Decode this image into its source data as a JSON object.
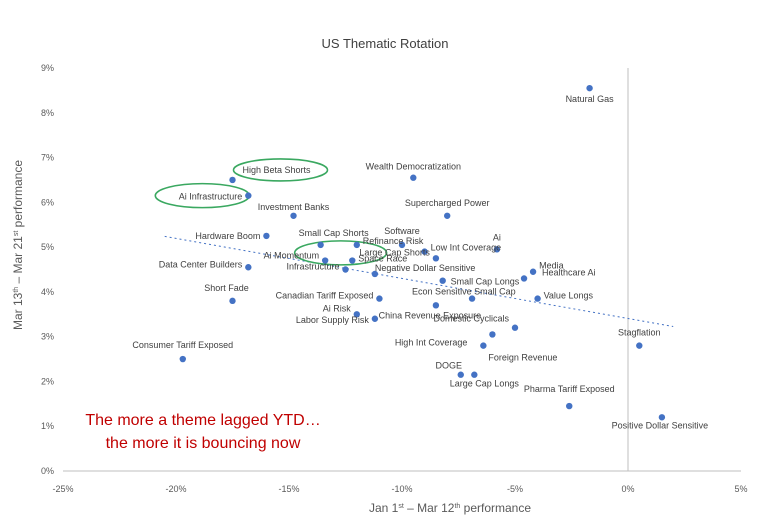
{
  "chart_data": {
    "type": "scatter",
    "title": "US Thematic Rotation",
    "xlabel": "Jan 1st – Mar 12th performance",
    "ylabel": "Mar 13th – Mar 21st performance",
    "x_unit": "%",
    "y_unit": "%",
    "xlim": [
      -25,
      5
    ],
    "ylim": [
      0,
      9
    ],
    "x_ticks": [
      "-25%",
      "-20%",
      "-15%",
      "-10%",
      "-5%",
      "0%",
      "5%"
    ],
    "y_ticks": [
      "0%",
      "1%",
      "2%",
      "3%",
      "4%",
      "5%",
      "6%",
      "7%",
      "8%",
      "9%"
    ],
    "grid": false,
    "trendline": "dotted linear trend, downward sloping",
    "annotation_lines": [
      "The more a theme lagged YTD…",
      "the more it is bouncing now"
    ],
    "annotation_color": "#c00000",
    "point_color": "#4472c4",
    "highlight_color": "#3aa860",
    "highlighted_points": [
      "High Beta Shorts",
      "Ai Infrastructure",
      "Small Cap Shorts"
    ],
    "points": [
      {
        "label": "Natural Gas",
        "x": -1.7,
        "y": 8.55
      },
      {
        "label": "High Beta Shorts",
        "x": -17.5,
        "y": 6.5
      },
      {
        "label": "Ai Infrastructure",
        "x": -16.8,
        "y": 6.15
      },
      {
        "label": "Wealth Democratization",
        "x": -9.5,
        "y": 6.55
      },
      {
        "label": "Supercharged Power",
        "x": -8.0,
        "y": 5.7
      },
      {
        "label": "Investment Banks",
        "x": -14.8,
        "y": 5.7
      },
      {
        "label": "Hardware Boom",
        "x": -16.0,
        "y": 5.25
      },
      {
        "label": "Small Cap Shorts",
        "x": -13.6,
        "y": 5.05
      },
      {
        "label": "Software",
        "x": -10.0,
        "y": 5.05
      },
      {
        "label": "Ai",
        "x": -5.8,
        "y": 4.95
      },
      {
        "label": "Refinance Risk",
        "x": -12.0,
        "y": 5.05
      },
      {
        "label": "Low Int Coverage",
        "x": -9.0,
        "y": 4.9
      },
      {
        "label": "Large Cap Shorts",
        "x": -8.5,
        "y": 4.75
      },
      {
        "label": "Ai Momentum",
        "x": -13.4,
        "y": 4.7
      },
      {
        "label": "Space Race",
        "x": -12.2,
        "y": 4.7
      },
      {
        "label": "Data Center Builders",
        "x": -16.8,
        "y": 4.55
      },
      {
        "label": "Infrastructure",
        "x": -12.5,
        "y": 4.5
      },
      {
        "label": "Negative Dollar Sensitive",
        "x": -11.2,
        "y": 4.4
      },
      {
        "label": "Media",
        "x": -4.2,
        "y": 4.45
      },
      {
        "label": "Healthcare Ai",
        "x": -4.6,
        "y": 4.3
      },
      {
        "label": "Small Cap Longs",
        "x": -8.2,
        "y": 4.25
      },
      {
        "label": "Short Fade",
        "x": -17.5,
        "y": 3.8
      },
      {
        "label": "Canadian Tariff Exposed",
        "x": -11.0,
        "y": 3.85
      },
      {
        "label": "Econ Sensitive Small Cap",
        "x": -6.9,
        "y": 3.85
      },
      {
        "label": "Value Longs",
        "x": -4.0,
        "y": 3.85
      },
      {
        "label": "Ai Risk",
        "x": -12.0,
        "y": 3.5
      },
      {
        "label": "China Revenue Exposure",
        "x": -8.5,
        "y": 3.7
      },
      {
        "label": "Domestic Cyclicals",
        "x": -5.0,
        "y": 3.2
      },
      {
        "label": "Labor Supply Risk",
        "x": -11.2,
        "y": 3.4
      },
      {
        "label": "Foreign Revenue",
        "x": -6.0,
        "y": 3.05
      },
      {
        "label": "Consumer Tariff Exposed",
        "x": -19.7,
        "y": 2.5
      },
      {
        "label": "High Int Coverage",
        "x": -6.4,
        "y": 2.8
      },
      {
        "label": "Stagflation",
        "x": 0.5,
        "y": 2.8
      },
      {
        "label": "DOGE",
        "x": -7.4,
        "y": 2.15
      },
      {
        "label": "Large Cap Longs",
        "x": -6.8,
        "y": 2.15
      },
      {
        "label": "Pharma Tariff Exposed",
        "x": -2.6,
        "y": 1.45
      },
      {
        "label": "Positive Dollar Sensitive",
        "x": 1.5,
        "y": 1.2
      }
    ]
  }
}
